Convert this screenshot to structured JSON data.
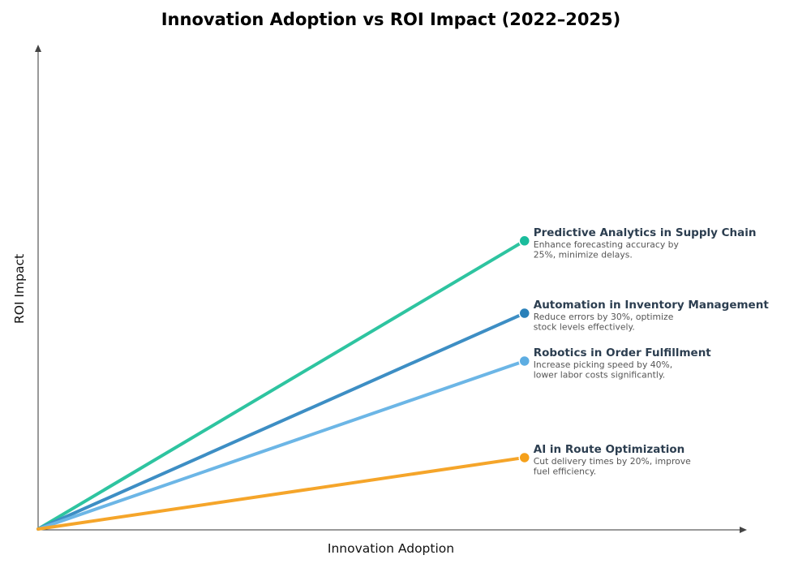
{
  "chart_data": {
    "type": "line",
    "title": "Innovation Adoption vs ROI Impact (2022–2025)",
    "xlabel": "Innovation Adoption",
    "ylabel": "ROI Impact",
    "xlim": [
      0,
      100
    ],
    "ylim": [
      0,
      100
    ],
    "grid": false,
    "ticks_shown": false,
    "series": [
      {
        "name": "Predictive Analytics in Supply Chain",
        "desc": [
          "Enhance forecasting accuracy by",
          "25%, minimize delays."
        ],
        "color": "#2ec4a0",
        "dot_color": "#1abc9c",
        "points": [
          [
            0,
            0
          ],
          [
            68.7,
            59.7
          ]
        ]
      },
      {
        "name": "Automation in Inventory Management",
        "desc": [
          "Reduce errors by 30%, optimize",
          "stock levels effectively."
        ],
        "color": "#3d8ec4",
        "dot_color": "#2980b9",
        "points": [
          [
            0,
            0
          ],
          [
            68.7,
            44.7
          ]
        ]
      },
      {
        "name": "Robotics in Order Fulfillment",
        "desc": [
          "Increase picking speed by 40%,",
          "lower labor costs significantly."
        ],
        "color": "#6cb6e6",
        "dot_color": "#5dade2",
        "points": [
          [
            0,
            0
          ],
          [
            68.7,
            34.8
          ]
        ]
      },
      {
        "name": "AI in Route Optimization",
        "desc": [
          "Cut delivery times by 20%, improve",
          "fuel efficiency."
        ],
        "color": "#f5a52a",
        "dot_color": "#f5a01a",
        "points": [
          [
            0,
            0
          ],
          [
            68.7,
            14.8
          ]
        ]
      }
    ]
  }
}
